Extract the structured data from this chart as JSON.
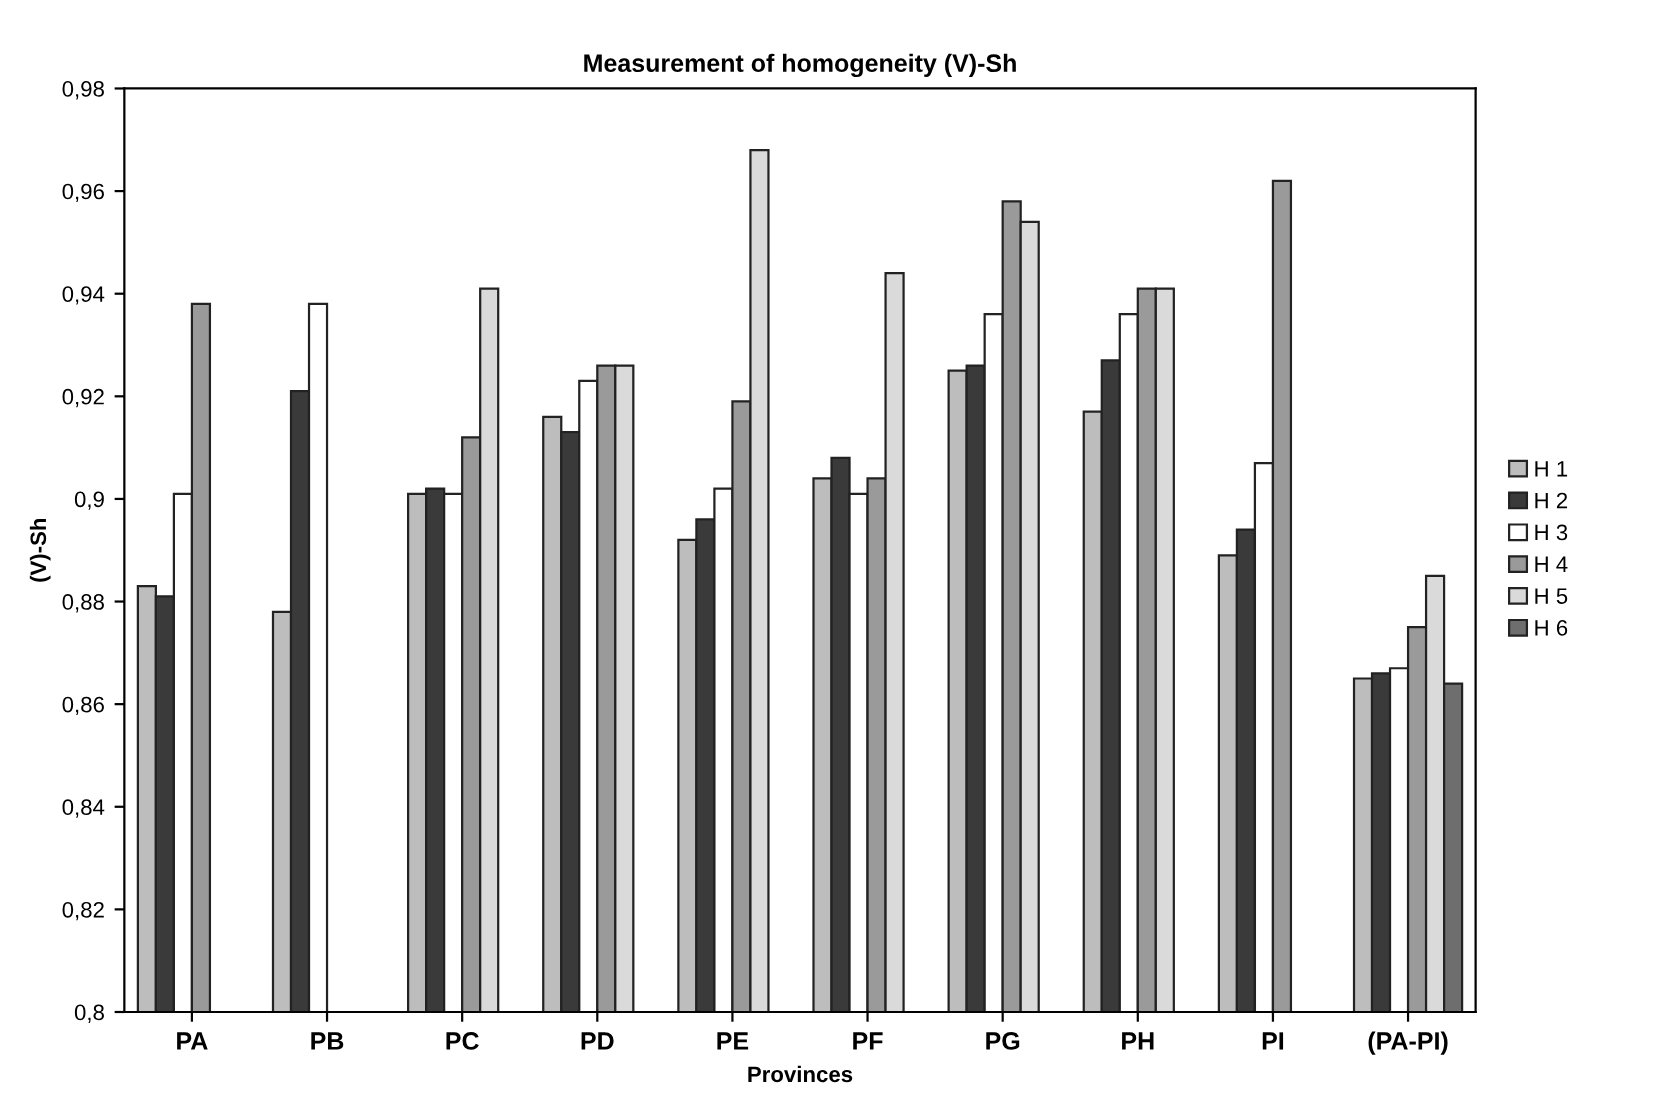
{
  "chart_data": {
    "type": "bar",
    "title": "Measurement of homogeneity (V)-Sh",
    "xlabel": "Provinces",
    "ylabel": "(V)-Sh",
    "categories": [
      "PA",
      "PB",
      "PC",
      "PD",
      "PE",
      "PF",
      "PG",
      "PH",
      "PI",
      "(PA-PI)"
    ],
    "series": [
      {
        "name": "H 1",
        "color": "#bdbdbd",
        "values": [
          0.883,
          0.878,
          0.901,
          0.916,
          0.892,
          0.904,
          0.925,
          0.917,
          0.889,
          0.865
        ]
      },
      {
        "name": "H 2",
        "color": "#3a3a3a",
        "values": [
          0.881,
          0.921,
          0.902,
          0.913,
          0.896,
          0.908,
          0.926,
          0.927,
          0.894,
          0.866
        ]
      },
      {
        "name": "H 3",
        "color": "#ffffff",
        "values": [
          0.901,
          0.938,
          0.901,
          0.923,
          0.902,
          0.901,
          0.936,
          0.936,
          0.907,
          0.867
        ]
      },
      {
        "name": "H 4",
        "color": "#9a9a9a",
        "values": [
          0.938,
          null,
          0.912,
          0.926,
          0.919,
          0.904,
          0.958,
          0.941,
          0.962,
          0.875
        ]
      },
      {
        "name": "H 5",
        "color": "#dadada",
        "values": [
          null,
          null,
          0.941,
          0.926,
          0.968,
          0.944,
          0.954,
          0.941,
          null,
          0.885
        ]
      },
      {
        "name": "H 6",
        "color": "#6e6e6e",
        "values": [
          null,
          null,
          null,
          null,
          null,
          null,
          null,
          null,
          null,
          0.864
        ]
      }
    ],
    "ylim": [
      0.8,
      0.98
    ],
    "yticks": [
      {
        "value": 0.8,
        "label": "0,8"
      },
      {
        "value": 0.82,
        "label": "0,82"
      },
      {
        "value": 0.84,
        "label": "0,84"
      },
      {
        "value": 0.86,
        "label": "0,86"
      },
      {
        "value": 0.88,
        "label": "0,88"
      },
      {
        "value": 0.9,
        "label": "0,9"
      },
      {
        "value": 0.92,
        "label": "0,92"
      },
      {
        "value": 0.94,
        "label": "0,94"
      },
      {
        "value": 0.96,
        "label": "0,96"
      },
      {
        "value": 0.98,
        "label": "0,98"
      }
    ],
    "grid": false,
    "legend": "right"
  }
}
